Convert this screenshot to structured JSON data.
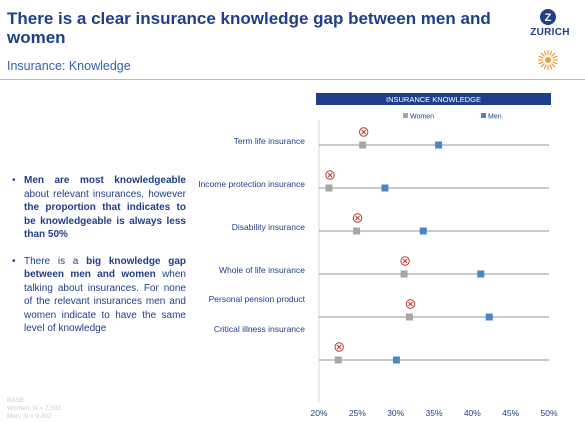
{
  "header": {
    "title": "There is a clear insurance knowledge gap between men and women",
    "subtitle": "Insurance: Knowledge",
    "logo_text": "ZURICH"
  },
  "bullets": [
    {
      "parts": [
        {
          "text": "Men are most knowledgeable",
          "bold": true
        },
        {
          "text": " about relevant insurances, however ",
          "bold": false
        },
        {
          "text": "the proportion that indicates to be knowledgeable is always less than 50%",
          "bold": true
        }
      ]
    },
    {
      "parts": [
        {
          "text": "There is a ",
          "bold": false
        },
        {
          "text": "big knowledge gap between men and women",
          "bold": true
        },
        {
          "text": " when talking about insurances. For none of the relevant insurances men and women indicate to have the same level of knowledge",
          "bold": false
        }
      ]
    }
  ],
  "base": {
    "title": "BASE",
    "women": "Women, N = 7,592",
    "men": "Men, N = 9,302"
  },
  "colors": {
    "navy": "#1f3e8c",
    "header_bar": "#1f3e8c",
    "women": "#a6a6a6",
    "men": "#4a86c4",
    "gap_marker": "#c0392b",
    "line": "#8d98aa"
  },
  "chart_data": {
    "type": "scatter",
    "title": "INSURANCE KNOWLEDGE",
    "legend": [
      "Women",
      "Men"
    ],
    "legend_position": "top-right",
    "xlim": [
      20,
      50
    ],
    "x_ticks": [
      "20%",
      "25%",
      "30%",
      "35%",
      "40%",
      "45%",
      "50%"
    ],
    "categories": [
      "Term life insurance",
      "Income protection insurance",
      "Disability insurance",
      "Whole of life insurance",
      "Personal pension product",
      "Critical illness insurance"
    ],
    "series": [
      {
        "name": "Women",
        "values": [
          25.7,
          21.3,
          24.9,
          31.1,
          31.8,
          22.5
        ]
      },
      {
        "name": "Men",
        "values": [
          35.6,
          28.6,
          33.6,
          41.1,
          42.2,
          30.1
        ]
      }
    ],
    "gap_marker": "women"
  }
}
